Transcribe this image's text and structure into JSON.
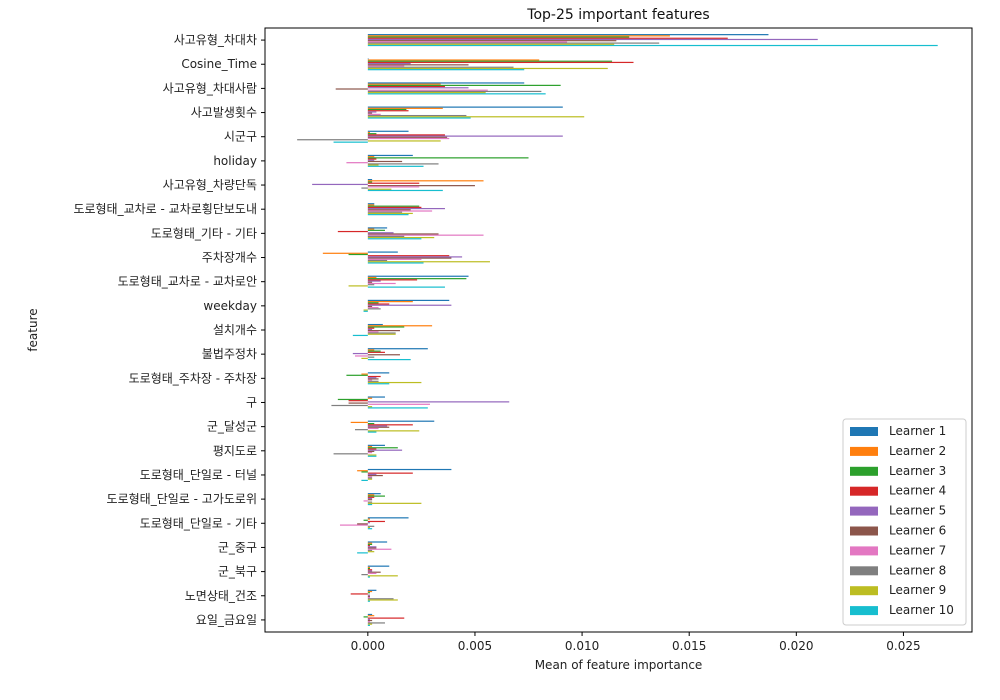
{
  "chart_data": {
    "type": "bar",
    "orientation": "horizontal",
    "title": "Top-25 important features",
    "xlabel": "Mean of feature importance",
    "ylabel": "feature",
    "xlim": [
      -0.0048,
      0.0282
    ],
    "xticks": [
      0.0,
      0.005,
      0.01,
      0.015,
      0.02,
      0.025
    ],
    "xtick_labels": [
      "0.000",
      "0.005",
      "0.010",
      "0.015",
      "0.020",
      "0.025"
    ],
    "grid": false,
    "legend_position": "bottom-right",
    "categories": [
      "사고유형_차대차",
      "Cosine_Time",
      "사고유형_차대사람",
      "사고발생횟수",
      "시군구",
      "holiday",
      "사고유형_차량단독",
      "도로형태_교차로 - 교차로횡단보도내",
      "도로형태_기타 - 기타",
      "주차장개수",
      "도로형태_교차로 - 교차로안",
      "weekday",
      "설치개수",
      "불법주정차",
      "도로형태_주차장 - 주차장",
      "구",
      "군_달성군",
      "평지도로",
      "도로형태_단일로 - 터널",
      "도로형태_단일로 - 고가도로위",
      "도로형태_단일로 - 기타",
      "군_중구",
      "군_북구",
      "노면상태_건조",
      "요일_금요일"
    ],
    "series": [
      {
        "name": "Learner 1",
        "color": "#1f77b4",
        "values": [
          0.0187,
          0.0,
          0.0073,
          0.0091,
          0.0019,
          0.0021,
          0.0002,
          0.0003,
          0.0009,
          0.0014,
          0.0047,
          0.0038,
          0.0007,
          0.0028,
          0.001,
          0.0008,
          0.0031,
          0.0008,
          0.0039,
          0.0006,
          0.0019,
          0.0009,
          0.001,
          0.0004,
          0.0002
        ]
      },
      {
        "name": "Learner 2",
        "color": "#ff7f0e",
        "values": [
          0.0141,
          0.008,
          0.0034,
          0.0035,
          0.0001,
          0.0003,
          0.0054,
          0.0003,
          0.0003,
          -0.0021,
          0.0004,
          0.0021,
          0.003,
          0.0003,
          -0.0003,
          0.0002,
          -0.0008,
          0.0002,
          -0.0005,
          0.0003,
          0.0001,
          0.0002,
          0.0001,
          0.0002,
          0.0003
        ]
      },
      {
        "name": "Learner 3",
        "color": "#2ca02c",
        "values": [
          0.0122,
          0.0114,
          0.009,
          0.0018,
          0.0004,
          0.0075,
          0.0002,
          0.0024,
          0.0008,
          -0.0009,
          0.0046,
          0.0005,
          0.0017,
          0.0006,
          -0.001,
          -0.0014,
          0.0003,
          0.0014,
          -0.0003,
          0.0008,
          -0.0002,
          0.0002,
          0.0001,
          0.0001,
          -0.0002
        ]
      },
      {
        "name": "Learner 4",
        "color": "#d62728",
        "values": [
          0.0168,
          0.0124,
          0.0036,
          0.0019,
          0.0036,
          0.0004,
          0.0024,
          0.0025,
          -0.0014,
          0.0038,
          0.0023,
          0.001,
          0.0003,
          0.0008,
          0.0006,
          -0.0009,
          0.0021,
          0.0004,
          0.0021,
          0.0003,
          0.0008,
          0.0001,
          0.0002,
          -0.0008,
          0.0017
        ]
      },
      {
        "name": "Learner 5",
        "color": "#9467bd",
        "values": [
          0.021,
          0.002,
          0.0047,
          0.0004,
          0.0091,
          0.0003,
          -0.0026,
          0.0036,
          0.0012,
          0.0044,
          0.0006,
          0.0039,
          0.0002,
          -0.0007,
          0.0004,
          0.0066,
          0.0009,
          0.0016,
          0.0004,
          0.0002,
          0.0001,
          0.0004,
          0.0002,
          0.0001,
          0.0001
        ]
      },
      {
        "name": "Learner 6",
        "color": "#8c564b",
        "values": [
          0.0116,
          0.0047,
          -0.0015,
          0.0002,
          0.0037,
          0.0016,
          0.005,
          0.002,
          0.0033,
          0.0039,
          0.0002,
          0.0002,
          0.0015,
          0.0015,
          0.0005,
          -0.0009,
          0.001,
          0.0003,
          0.0007,
          0.0002,
          -0.0005,
          0.0004,
          0.0006,
          0.0001,
          0.0002
        ]
      },
      {
        "name": "Learner 7",
        "color": "#e377c2",
        "values": [
          0.0093,
          0.0017,
          0.0056,
          0.0006,
          0.0038,
          -0.001,
          0.0024,
          0.003,
          0.0054,
          0.0025,
          0.0013,
          0.0005,
          0.0005,
          -0.0006,
          0.0002,
          0.0029,
          0.0005,
          0.0002,
          0.0002,
          -0.0002,
          -0.0013,
          0.0011,
          0.0004,
          0.0001,
          0.0001
        ]
      },
      {
        "name": "Learner 8",
        "color": "#7f7f7f",
        "values": [
          0.0136,
          0.0068,
          0.0081,
          0.0046,
          -0.0033,
          0.0033,
          -0.0003,
          0.0016,
          0.0017,
          0.0009,
          0.0003,
          0.0006,
          0.0013,
          0.0003,
          0.0005,
          -0.0017,
          -0.0006,
          -0.0016,
          0.0002,
          0.0002,
          0.0003,
          0.0002,
          -0.0003,
          0.0012,
          0.0008
        ]
      },
      {
        "name": "Learner 9",
        "color": "#bcbd22",
        "values": [
          0.0115,
          0.0112,
          0.0055,
          0.0101,
          0.0034,
          0.0005,
          0.0011,
          0.0021,
          0.0031,
          0.0057,
          -0.0009,
          -0.0002,
          0.0013,
          -0.0003,
          0.0025,
          0.0002,
          0.0024,
          0.0004,
          0.0002,
          0.0025,
          0.0001,
          0.0003,
          0.0014,
          0.0014,
          0.0002
        ]
      },
      {
        "name": "Learner 10",
        "color": "#17becf",
        "values": [
          0.0266,
          0.0073,
          0.0083,
          0.0048,
          -0.0016,
          0.0026,
          0.0035,
          0.0019,
          0.0025,
          0.0026,
          0.0036,
          -0.0002,
          -0.0007,
          0.002,
          0.001,
          0.0028,
          0.0004,
          0.0004,
          -0.0003,
          0.0002,
          0.0002,
          -0.0005,
          0.0001,
          0.0001,
          0.0001
        ]
      }
    ]
  }
}
